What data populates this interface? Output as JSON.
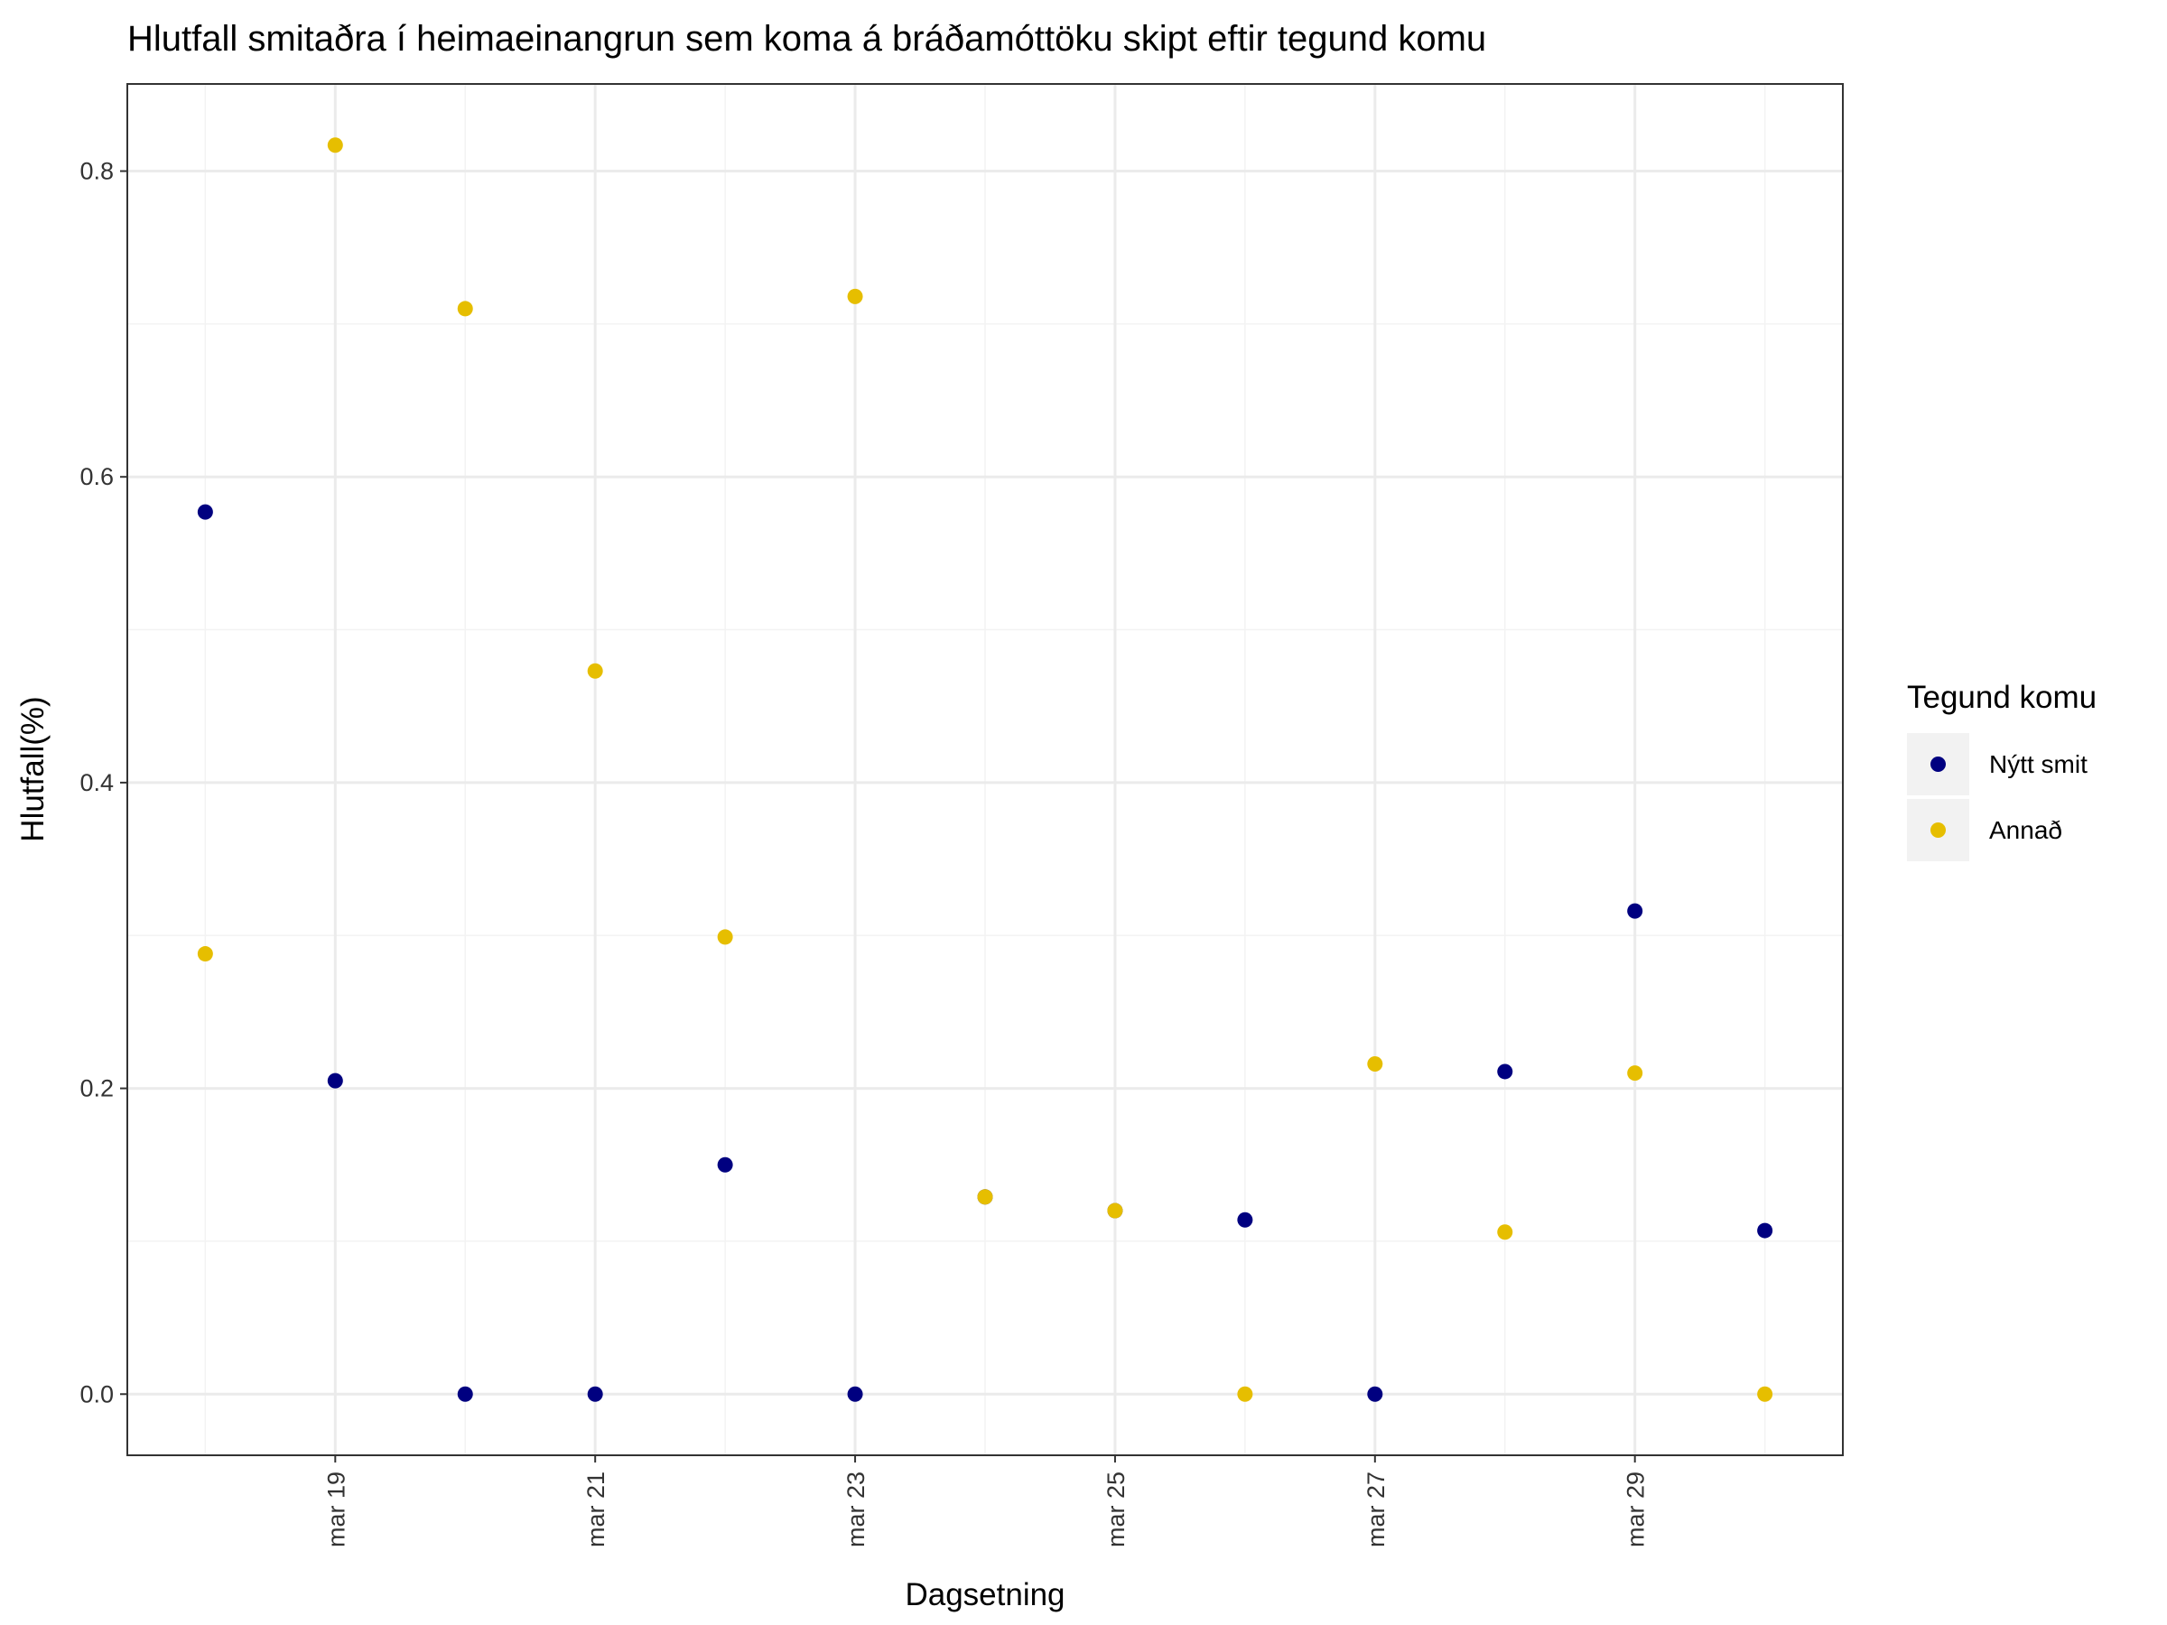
{
  "chart_data": {
    "type": "scatter",
    "title": "Hlutfall smitaðra í heimaeinangrun sem koma á bráðamóttöku skipt eftir tegund komu",
    "xlabel": "Dagsetning",
    "ylabel": "Hlutfall(%)",
    "x": [
      "2020-03-18",
      "2020-03-19",
      "2020-03-20",
      "2020-03-21",
      "2020-03-22",
      "2020-03-23",
      "2020-03-24",
      "2020-03-25",
      "2020-03-26",
      "2020-03-27",
      "2020-03-28",
      "2020-03-29",
      "2020-03-30"
    ],
    "x_ticks": [
      "2020-03-19",
      "2020-03-21",
      "2020-03-23",
      "2020-03-25",
      "2020-03-27",
      "2020-03-29"
    ],
    "x_tick_labels": [
      "mar 19",
      "mar 21",
      "mar 23",
      "mar 25",
      "mar 27",
      "mar 29"
    ],
    "xlim": [
      "2020-03-17.4",
      "2020-03-30.6"
    ],
    "y_ticks": [
      0.0,
      0.2,
      0.4,
      0.6,
      0.8
    ],
    "y_tick_labels": [
      "0.0",
      "0.2",
      "0.4",
      "0.6",
      "0.8"
    ],
    "ylim": [
      -0.04,
      0.857
    ],
    "grid": true,
    "legend_title": "Tegund komu",
    "legend_position": "right",
    "series": [
      {
        "name": "Nýtt smit",
        "color": "#000080",
        "values": [
          0.577,
          0.205,
          0.0,
          0.0,
          0.15,
          0.0,
          0.129,
          0.12,
          0.114,
          0.0,
          0.211,
          0.316,
          0.107
        ]
      },
      {
        "name": "Annað",
        "color": "#E6BE00",
        "values": [
          0.288,
          0.817,
          0.71,
          0.473,
          0.299,
          0.718,
          0.129,
          0.12,
          0.0,
          0.216,
          0.106,
          0.21,
          0.0
        ]
      }
    ]
  }
}
